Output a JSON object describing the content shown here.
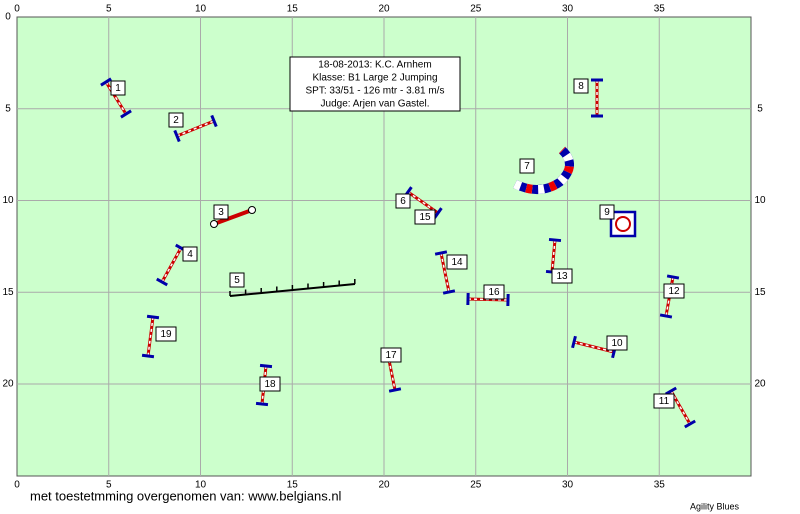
{
  "info": {
    "lines": [
      "18-08-2013: K.C. Arnhem",
      "Klasse: B1 Large 2 Jumping",
      "SPT: 33/51 - 126 mtr - 3.81 m/s",
      "Judge: Arjen van Gastel."
    ]
  },
  "axes": {
    "top": [
      0,
      5,
      10,
      15,
      20,
      25,
      30,
      35
    ],
    "bottom": [
      0,
      5,
      10,
      15,
      20,
      25,
      30,
      35
    ],
    "left": [
      0,
      5,
      10,
      15,
      20
    ],
    "right": [
      5,
      10,
      15,
      20
    ]
  },
  "obstacle_labels": [
    "1",
    "2",
    "3",
    "4",
    "5",
    "6",
    "7",
    "8",
    "9",
    "10",
    "11",
    "12",
    "13",
    "14",
    "15",
    "16",
    "17",
    "18",
    "19"
  ],
  "footer": {
    "credit": "met toestetmming overgenomen van: www.belgians.nl",
    "brand": "Agility Blues"
  }
}
